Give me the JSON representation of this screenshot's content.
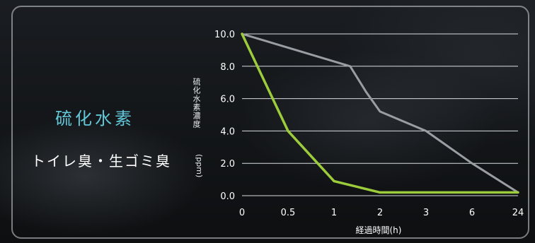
{
  "heading": {
    "title": "硫化水素",
    "subtitle": "トイレ臭・生ゴミ臭"
  },
  "colors": {
    "title": "#62c7d8",
    "series_green": "#9ccc3b",
    "series_gray": "#9a9ea3",
    "grid": "#d9dde0",
    "text": "#ffffff"
  },
  "chart_data": {
    "type": "line",
    "x": [
      "0",
      "0.5",
      "1",
      "2",
      "3",
      "6",
      "24"
    ],
    "xlabel": "経過時間(h)",
    "ylabel": "硫化水素濃度",
    "yunit": "(ppm)",
    "ylim": [
      0,
      10
    ],
    "yticks": [
      "0.0",
      "2.0",
      "4.0",
      "6.0",
      "8.0",
      "10.0"
    ],
    "grid": true,
    "series": [
      {
        "color": "#9ccc3b",
        "points": [
          [
            0,
            10.0
          ],
          [
            0.5,
            4.0
          ],
          [
            1,
            0.9
          ],
          [
            2,
            0.2
          ],
          [
            3,
            0.2
          ],
          [
            6,
            0.2
          ],
          [
            24,
            0.2
          ]
        ]
      },
      {
        "color": "#9a9ea3",
        "points": [
          [
            0,
            10.0
          ],
          [
            1.35,
            8.0
          ],
          [
            1.7,
            6.4
          ],
          [
            2,
            5.2
          ],
          [
            3,
            4.0
          ],
          [
            6,
            2.0
          ],
          [
            24,
            0.2
          ]
        ]
      }
    ]
  }
}
